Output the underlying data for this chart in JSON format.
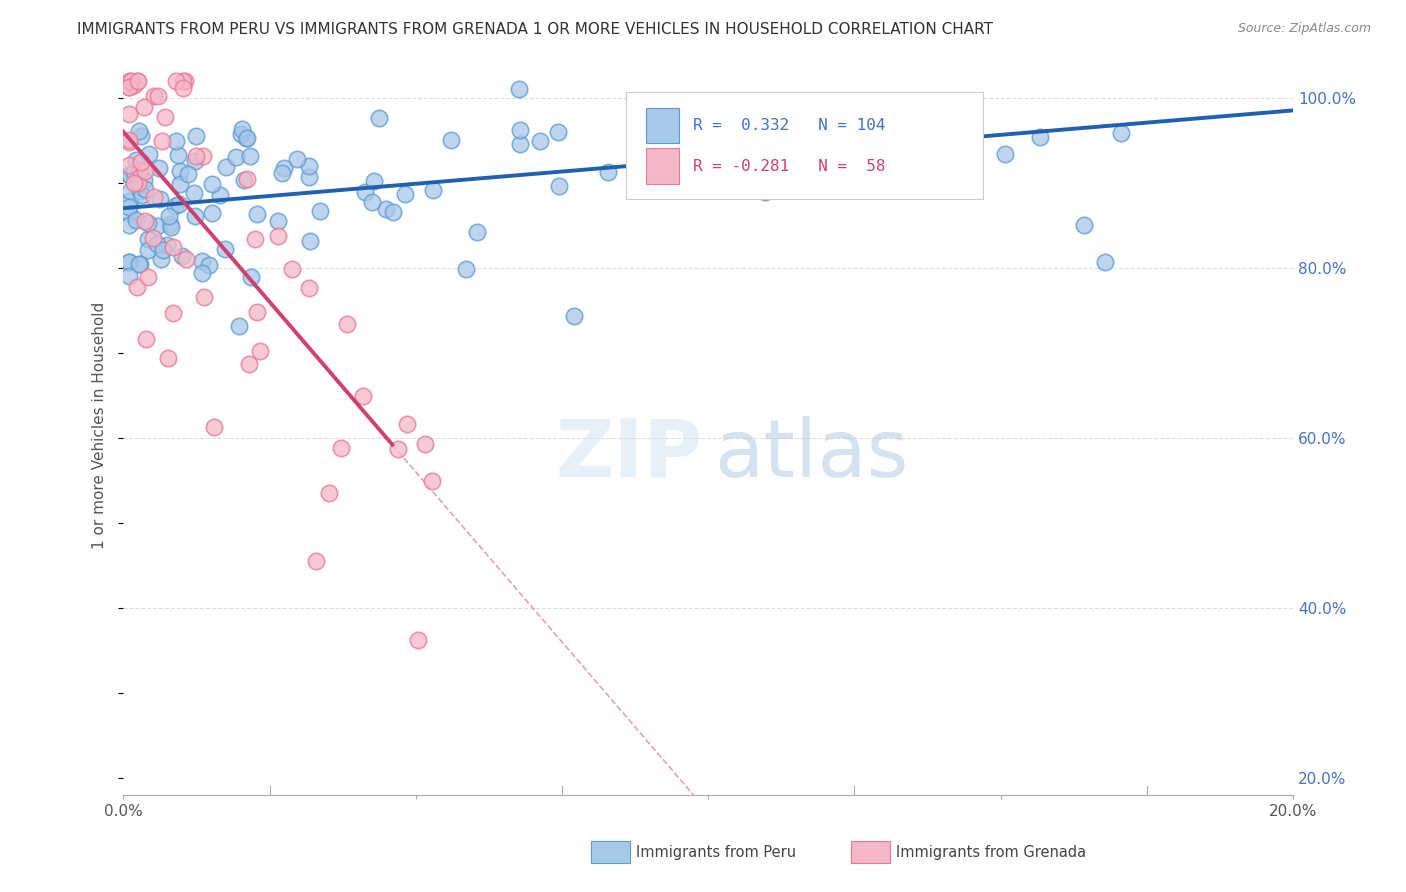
{
  "title": "IMMIGRANTS FROM PERU VS IMMIGRANTS FROM GRENADA 1 OR MORE VEHICLES IN HOUSEHOLD CORRELATION CHART",
  "source": "Source: ZipAtlas.com",
  "ylabel": "1 or more Vehicles in Household",
  "xlim": [
    0.0,
    0.2
  ],
  "ylim": [
    0.18,
    1.05
  ],
  "peru_color": "#a8c8e8",
  "peru_edge": "#5b9bd5",
  "grenada_color": "#f4b8c8",
  "grenada_edge": "#e87898",
  "trend_blue": "#2060b0",
  "trend_pink": "#d04070",
  "R_peru": 0.332,
  "N_peru": 104,
  "R_grenada": -0.281,
  "N_grenada": 58,
  "legend_labels": [
    "Immigrants from Peru",
    "Immigrants from Grenada"
  ],
  "background_color": "#ffffff",
  "grid_color": "#dddddd",
  "title_color": "#333333",
  "source_color": "#888888",
  "right_axis_color": "#4472c4",
  "watermark_zip_color": "#d0e4f5",
  "watermark_atlas_color": "#b0cce8"
}
